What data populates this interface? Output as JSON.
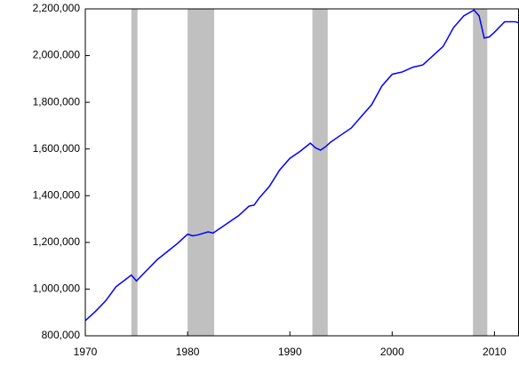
{
  "chart_data": {
    "type": "line",
    "x": [
      1970,
      1971,
      1972,
      1973,
      1974.5,
      1975.0,
      1976,
      1977,
      1978,
      1979,
      1980.0,
      1980.5,
      1981,
      1982,
      1982.5,
      1983,
      1984,
      1985,
      1986,
      1986.5,
      1987,
      1988,
      1989,
      1990,
      1991,
      1992.0,
      1992.5,
      1993,
      1993.5,
      1994,
      1995,
      1996,
      1997,
      1998,
      1999,
      2000,
      2001,
      2002,
      2003,
      2004,
      2005,
      2006,
      2007,
      2008.0,
      2008.5,
      2009.0,
      2009.5,
      2010,
      2011,
      2012,
      2012.4
    ],
    "series": [
      {
        "color": "#0000ff",
        "values": [
          865000,
          905000,
          950000,
          1010000,
          1060000,
          1035000,
          1080000,
          1125000,
          1160000,
          1195000,
          1235000,
          1228000,
          1232000,
          1245000,
          1240000,
          1255000,
          1285000,
          1315000,
          1355000,
          1360000,
          1390000,
          1440000,
          1510000,
          1560000,
          1590000,
          1625000,
          1605000,
          1595000,
          1610000,
          1630000,
          1660000,
          1690000,
          1740000,
          1790000,
          1870000,
          1920000,
          1930000,
          1950000,
          1960000,
          2000000,
          2040000,
          2120000,
          2170000,
          2195000,
          2170000,
          2075000,
          2080000,
          2100000,
          2145000,
          2145000,
          2140000
        ]
      }
    ],
    "shaded_ranges": [
      [
        1974.5,
        1975.1
      ],
      [
        1980.0,
        1982.6
      ],
      [
        1992.2,
        1993.7
      ],
      [
        2007.9,
        2009.3
      ]
    ],
    "shade_color": "#c0c0c0",
    "xlim": [
      1970,
      2012.4
    ],
    "xticks": [
      1970,
      1980,
      1990,
      2000,
      2010
    ],
    "ylim": [
      800000,
      2200000
    ],
    "yticks": [
      {
        "value": 800000,
        "label": "800,000"
      },
      {
        "value": 1000000,
        "label": "1,000,000"
      },
      {
        "value": 1200000,
        "label": "1,200,000"
      },
      {
        "value": 1400000,
        "label": "1,400,000"
      },
      {
        "value": 1600000,
        "label": "1,600,000"
      },
      {
        "value": 1800000,
        "label": "1,800,000"
      },
      {
        "value": 2000000,
        "label": "2,000,000"
      },
      {
        "value": 2200000,
        "label": "2,200,000"
      }
    ]
  }
}
